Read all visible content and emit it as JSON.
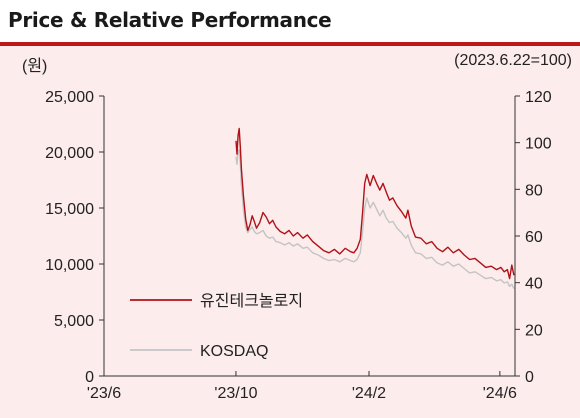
{
  "header": {
    "title": "Price & Relative Performance",
    "left_unit": "(원)",
    "right_unit": "(2023.6.22=100)"
  },
  "colors": {
    "stock": "#b01218",
    "index": "#c4c4c4",
    "accent": "#c0171d"
  },
  "chart_data": {
    "type": "line",
    "x_domain": [
      "2023-06-01",
      "2024-06-15"
    ],
    "x_ticks": [
      {
        "date": "2023-06-01",
        "label": "'23/6"
      },
      {
        "date": "2023-10-01",
        "label": "'23/10"
      },
      {
        "date": "2024-02-01",
        "label": "'24/2"
      },
      {
        "date": "2024-06-01",
        "label": "'24/6"
      }
    ],
    "y_left": {
      "range": [
        0,
        25000
      ],
      "ticks": [
        "0",
        "5,000",
        "10,000",
        "15,000",
        "20,000",
        "25,000"
      ]
    },
    "y_right": {
      "range": [
        0,
        120
      ],
      "ticks": [
        "0",
        "20",
        "40",
        "60",
        "80",
        "100",
        "120"
      ]
    },
    "legend_position": "bottom-left",
    "grid": false,
    "series": [
      {
        "name": "유진테크놀로지",
        "axis": "left",
        "points": [
          [
            "2023-10-01",
            21000
          ],
          [
            "2023-10-02",
            19800
          ],
          [
            "2023-10-03",
            21500
          ],
          [
            "2023-10-04",
            22100
          ],
          [
            "2023-10-05",
            20500
          ],
          [
            "2023-10-06",
            18500
          ],
          [
            "2023-10-08",
            16000
          ],
          [
            "2023-10-10",
            14000
          ],
          [
            "2023-10-12",
            13000
          ],
          [
            "2023-10-14",
            13500
          ],
          [
            "2023-10-16",
            14300
          ],
          [
            "2023-10-18",
            13800
          ],
          [
            "2023-10-20",
            13200
          ],
          [
            "2023-10-23",
            13700
          ],
          [
            "2023-10-26",
            14600
          ],
          [
            "2023-10-29",
            14200
          ],
          [
            "2023-11-01",
            13600
          ],
          [
            "2023-11-04",
            13900
          ],
          [
            "2023-11-07",
            13300
          ],
          [
            "2023-11-11",
            12900
          ],
          [
            "2023-11-15",
            12700
          ],
          [
            "2023-11-19",
            13000
          ],
          [
            "2023-11-23",
            12500
          ],
          [
            "2023-11-27",
            12800
          ],
          [
            "2023-12-02",
            12300
          ],
          [
            "2023-12-06",
            12600
          ],
          [
            "2023-12-11",
            12000
          ],
          [
            "2023-12-16",
            11600
          ],
          [
            "2023-12-21",
            11200
          ],
          [
            "2023-12-26",
            11000
          ],
          [
            "2023-12-31",
            11300
          ],
          [
            "2024-01-05",
            10900
          ],
          [
            "2024-01-10",
            11400
          ],
          [
            "2024-01-15",
            11100
          ],
          [
            "2024-01-18",
            11000
          ],
          [
            "2024-01-21",
            11400
          ],
          [
            "2024-01-24",
            12200
          ],
          [
            "2024-01-26",
            14500
          ],
          [
            "2024-01-28",
            17200
          ],
          [
            "2024-01-30",
            18000
          ],
          [
            "2024-02-02",
            17000
          ],
          [
            "2024-02-05",
            17900
          ],
          [
            "2024-02-08",
            17200
          ],
          [
            "2024-02-11",
            16600
          ],
          [
            "2024-02-14",
            17200
          ],
          [
            "2024-02-17",
            16400
          ],
          [
            "2024-02-20",
            15700
          ],
          [
            "2024-02-23",
            15900
          ],
          [
            "2024-02-27",
            15200
          ],
          [
            "2024-03-02",
            14700
          ],
          [
            "2024-03-06",
            14100
          ],
          [
            "2024-03-08",
            14800
          ],
          [
            "2024-03-11",
            13400
          ],
          [
            "2024-03-15",
            12400
          ],
          [
            "2024-03-20",
            12300
          ],
          [
            "2024-03-25",
            11800
          ],
          [
            "2024-03-30",
            12000
          ],
          [
            "2024-04-04",
            11400
          ],
          [
            "2024-04-09",
            11100
          ],
          [
            "2024-04-14",
            11500
          ],
          [
            "2024-04-19",
            11000
          ],
          [
            "2024-04-24",
            11300
          ],
          [
            "2024-04-29",
            10800
          ],
          [
            "2024-05-04",
            10400
          ],
          [
            "2024-05-09",
            10500
          ],
          [
            "2024-05-14",
            10100
          ],
          [
            "2024-05-19",
            9700
          ],
          [
            "2024-05-24",
            9800
          ],
          [
            "2024-05-29",
            9500
          ],
          [
            "2024-06-02",
            9700
          ],
          [
            "2024-06-05",
            9300
          ],
          [
            "2024-06-08",
            9500
          ],
          [
            "2024-06-10",
            8700
          ],
          [
            "2024-06-12",
            9900
          ],
          [
            "2024-06-14",
            9000
          ]
        ]
      },
      {
        "name": "KOSDAQ",
        "axis": "left",
        "points": [
          [
            "2023-10-01",
            19600
          ],
          [
            "2023-10-02",
            18900
          ],
          [
            "2023-10-03",
            20000
          ],
          [
            "2023-10-04",
            20200
          ],
          [
            "2023-10-05",
            19000
          ],
          [
            "2023-10-06",
            17000
          ],
          [
            "2023-10-08",
            14800
          ],
          [
            "2023-10-10",
            13300
          ],
          [
            "2023-10-12",
            12800
          ],
          [
            "2023-10-14",
            13100
          ],
          [
            "2023-10-16",
            13300
          ],
          [
            "2023-10-18",
            12900
          ],
          [
            "2023-10-20",
            12700
          ],
          [
            "2023-10-23",
            12800
          ],
          [
            "2023-10-26",
            13000
          ],
          [
            "2023-10-29",
            12500
          ],
          [
            "2023-11-01",
            12300
          ],
          [
            "2023-11-04",
            12400
          ],
          [
            "2023-11-07",
            12000
          ],
          [
            "2023-11-11",
            11900
          ],
          [
            "2023-11-15",
            11700
          ],
          [
            "2023-11-19",
            11900
          ],
          [
            "2023-11-23",
            11600
          ],
          [
            "2023-11-27",
            11800
          ],
          [
            "2023-12-02",
            11400
          ],
          [
            "2023-12-06",
            11500
          ],
          [
            "2023-12-11",
            11000
          ],
          [
            "2023-12-16",
            10800
          ],
          [
            "2023-12-21",
            10500
          ],
          [
            "2023-12-26",
            10300
          ],
          [
            "2023-12-31",
            10400
          ],
          [
            "2024-01-05",
            10200
          ],
          [
            "2024-01-10",
            10500
          ],
          [
            "2024-01-15",
            10300
          ],
          [
            "2024-01-18",
            10200
          ],
          [
            "2024-01-21",
            10400
          ],
          [
            "2024-01-24",
            11000
          ],
          [
            "2024-01-26",
            12800
          ],
          [
            "2024-01-28",
            15000
          ],
          [
            "2024-01-30",
            15900
          ],
          [
            "2024-02-02",
            15000
          ],
          [
            "2024-02-05",
            15500
          ],
          [
            "2024-02-08",
            14900
          ],
          [
            "2024-02-11",
            14300
          ],
          [
            "2024-02-14",
            14800
          ],
          [
            "2024-02-17",
            14100
          ],
          [
            "2024-02-20",
            13700
          ],
          [
            "2024-02-23",
            13800
          ],
          [
            "2024-02-27",
            13200
          ],
          [
            "2024-03-02",
            12800
          ],
          [
            "2024-03-06",
            12300
          ],
          [
            "2024-03-08",
            12600
          ],
          [
            "2024-03-11",
            11700
          ],
          [
            "2024-03-15",
            11000
          ],
          [
            "2024-03-20",
            10900
          ],
          [
            "2024-03-25",
            10500
          ],
          [
            "2024-03-30",
            10600
          ],
          [
            "2024-04-04",
            10100
          ],
          [
            "2024-04-09",
            9900
          ],
          [
            "2024-04-14",
            10200
          ],
          [
            "2024-04-19",
            9800
          ],
          [
            "2024-04-24",
            10000
          ],
          [
            "2024-04-29",
            9600
          ],
          [
            "2024-05-04",
            9200
          ],
          [
            "2024-05-09",
            9300
          ],
          [
            "2024-05-14",
            9000
          ],
          [
            "2024-05-19",
            8700
          ],
          [
            "2024-05-24",
            8800
          ],
          [
            "2024-05-29",
            8500
          ],
          [
            "2024-06-02",
            8600
          ],
          [
            "2024-06-05",
            8300
          ],
          [
            "2024-06-08",
            8400
          ],
          [
            "2024-06-10",
            8000
          ],
          [
            "2024-06-12",
            8200
          ],
          [
            "2024-06-14",
            7800
          ]
        ]
      }
    ]
  }
}
